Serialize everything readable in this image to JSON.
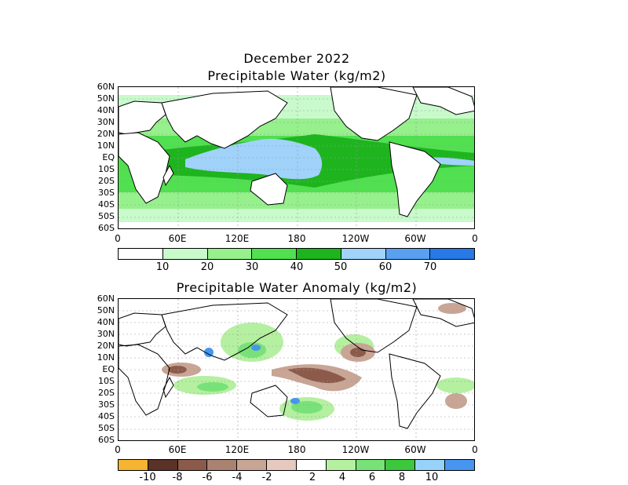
{
  "header": {
    "date_title": "December 2022",
    "top_title": "Precipitable Water (kg/m2)",
    "bottom_title": "Precipitable Water Anomaly (kg/m2)"
  },
  "map": {
    "lat_labels": [
      "60N",
      "50N",
      "40N",
      "30N",
      "20N",
      "10N",
      "EQ",
      "10S",
      "20S",
      "30S",
      "40S",
      "50S",
      "60S"
    ],
    "lon_labels": [
      "0",
      "60E",
      "120E",
      "180",
      "120W",
      "60W",
      "0"
    ]
  },
  "colorbar_top": {
    "labels": [
      "10",
      "20",
      "30",
      "40",
      "50",
      "60",
      "70"
    ],
    "colors": [
      "#ffffff",
      "#c8facc",
      "#96f08c",
      "#50e050",
      "#1eb41e",
      "#a0d2fa",
      "#5aa0f0",
      "#2878e6"
    ]
  },
  "colorbar_bottom": {
    "labels": [
      "-10",
      "-8",
      "-6",
      "-4",
      "-2",
      "2",
      "4",
      "6",
      "8",
      "10"
    ],
    "colors": [
      "#f5b432",
      "#5a3228",
      "#8c5a4b",
      "#aa8272",
      "#c8a595",
      "#e6c8be",
      "#ffffff",
      "#b4f0a0",
      "#78e278",
      "#3cc83c",
      "#96d2fa",
      "#4696f0"
    ]
  }
}
